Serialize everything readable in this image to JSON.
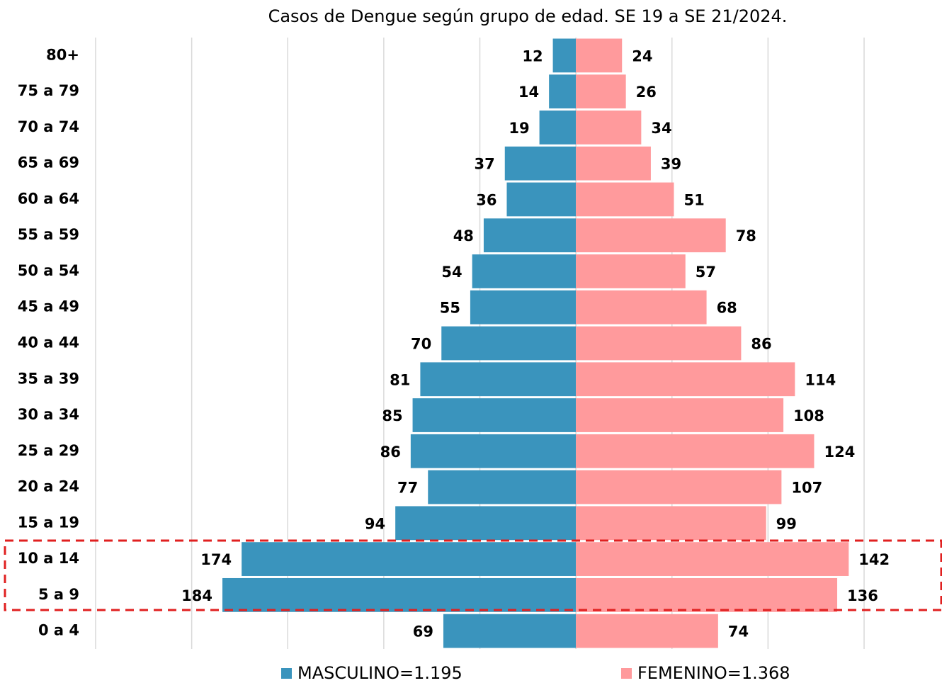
{
  "chart_data": {
    "type": "pyramid",
    "title": "Casos de Dengue según grupo de edad. SE 19 a SE 21/2024.",
    "categories": [
      "80+",
      "75 a 79",
      "70 a 74",
      "65 a 69",
      "60 a 64",
      "55 a 59",
      "50 a 54",
      "45 a 49",
      "40 a 44",
      "35 a 39",
      "30 a 34",
      "25 a 29",
      "20 a 24",
      "15 a 19",
      "10 a 14",
      "5 a 9",
      "0 a 4"
    ],
    "series": [
      {
        "name": "MASCULINO=1.195",
        "color": "#3a94bd",
        "side": "left",
        "values": [
          12,
          14,
          19,
          37,
          36,
          48,
          54,
          55,
          70,
          81,
          85,
          86,
          77,
          94,
          174,
          184,
          69
        ]
      },
      {
        "name": "FEMENINO=1.368",
        "color": "#ff9a9c",
        "side": "right",
        "values": [
          24,
          26,
          34,
          39,
          51,
          78,
          57,
          68,
          86,
          114,
          108,
          124,
          107,
          99,
          142,
          136,
          74
        ]
      }
    ],
    "xlim": [
      -250,
      150
    ],
    "xticks": [
      -250,
      -200,
      -150,
      -100,
      -50,
      0,
      50,
      100,
      150
    ],
    "grid": true
  }
}
